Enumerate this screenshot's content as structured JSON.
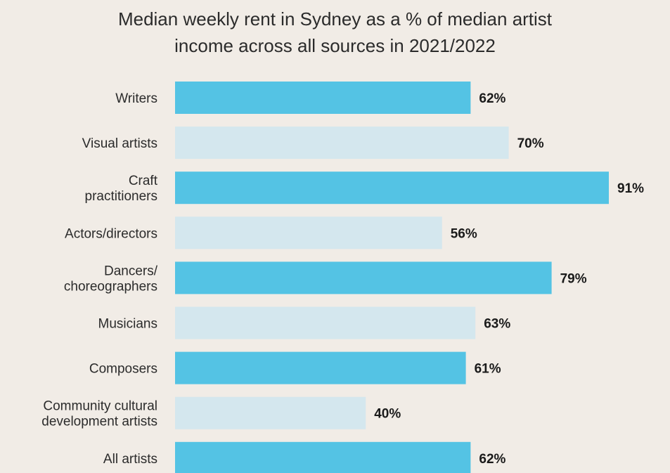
{
  "chart_data": {
    "type": "bar",
    "orientation": "horizontal",
    "title_line1": "Median weekly rent in Sydney as a % of median artist",
    "title_line2": "income across all sources in 2021/2022",
    "categories": [
      [
        "Writers"
      ],
      [
        "Visual artists"
      ],
      [
        "Craft",
        "practitioners"
      ],
      [
        "Actors/directors"
      ],
      [
        "Dancers/",
        "choreographers"
      ],
      [
        "Musicians"
      ],
      [
        "Composers"
      ],
      [
        "Community cultural",
        "development artists"
      ],
      [
        "All artists"
      ]
    ],
    "values": [
      62,
      70,
      91,
      56,
      79,
      63,
      61,
      40,
      62
    ],
    "value_labels": [
      "62%",
      "70%",
      "91%",
      "56%",
      "79%",
      "63%",
      "61%",
      "40%",
      "62%"
    ],
    "unit": "%",
    "xlim": [
      0,
      100
    ],
    "grid": false,
    "legend": "none",
    "colors": {
      "dark_bar": "#54c3e4",
      "light_bar": "#d4e7ee",
      "background": "#f1ece6",
      "text": "#2b2b2b"
    }
  }
}
